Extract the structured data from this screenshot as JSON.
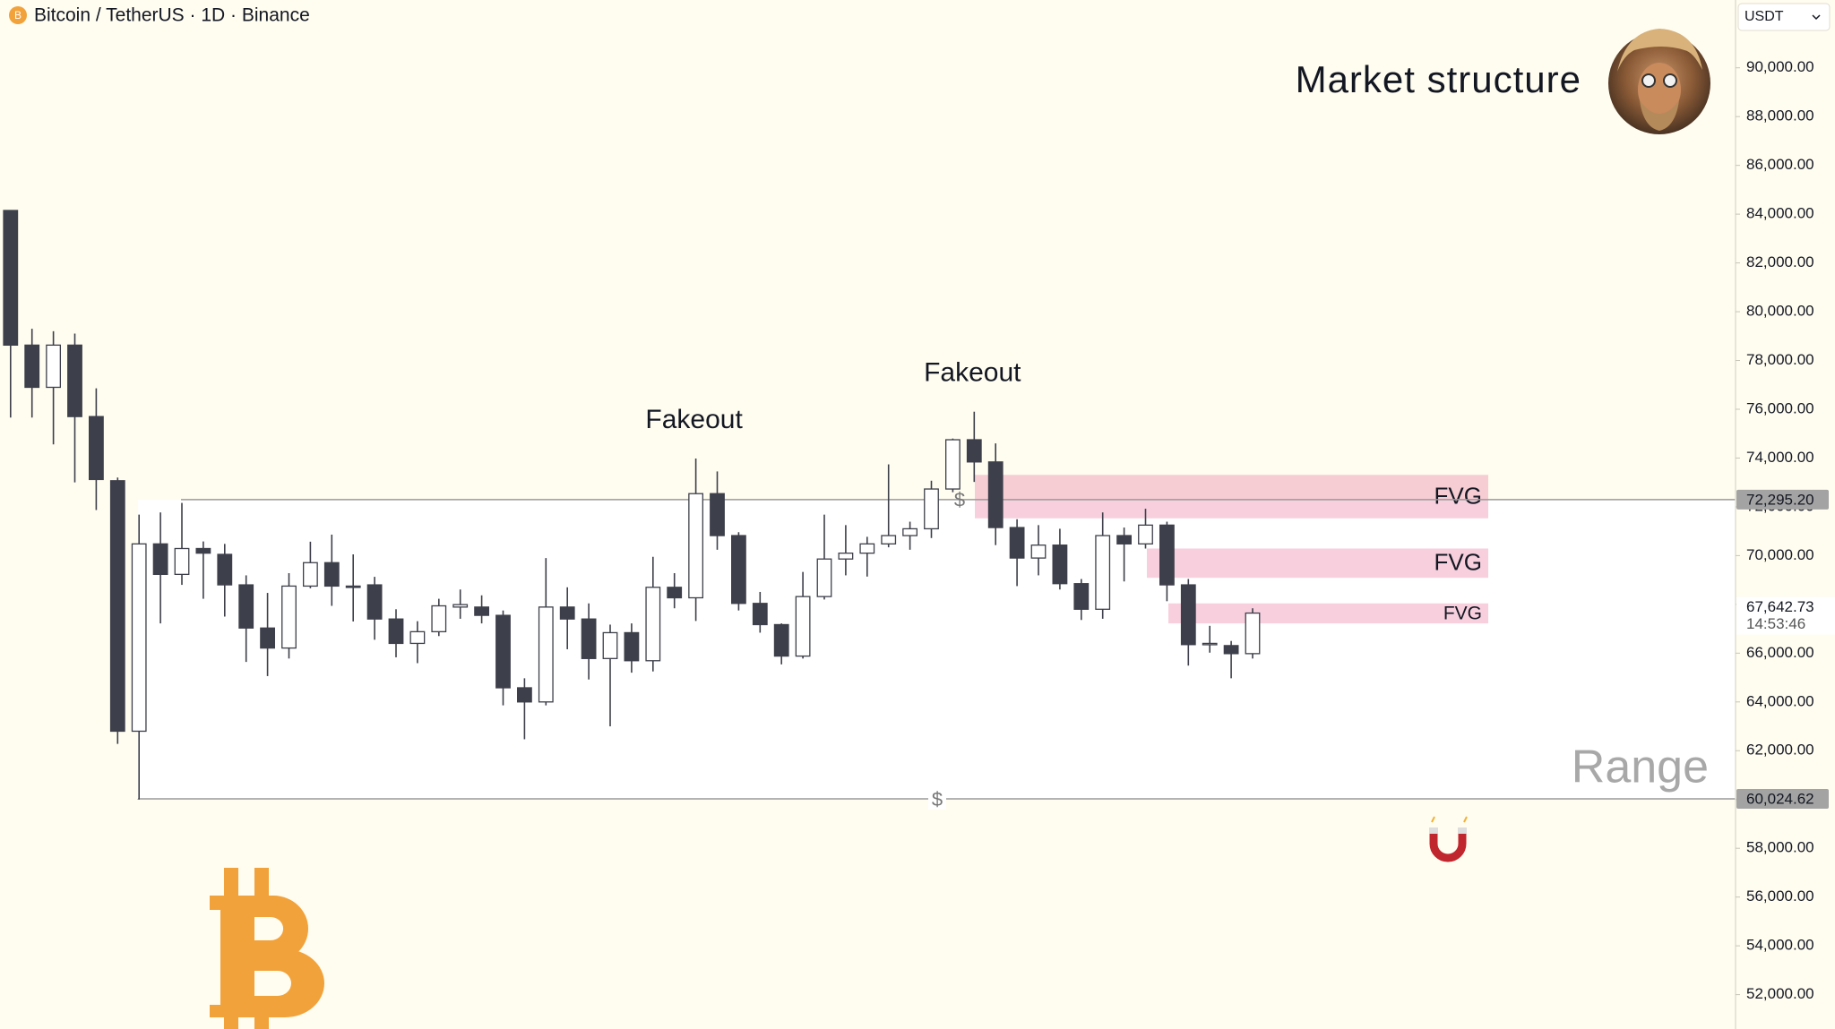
{
  "chart_data": {
    "type": "candlestick",
    "title": "Bitcoin / TetherUS · 1D · Binance",
    "currency": "USDT",
    "subtitle": "Market structure",
    "fakeouts": [
      "Fakeout",
      "Fakeout"
    ],
    "range_label": "Range",
    "open": [
      84150,
      78630,
      76900,
      78630,
      75700,
      73070,
      62800,
      70480,
      69230,
      70290,
      70050,
      68800,
      67030,
      66210,
      68750,
      69710,
      68750,
      68800,
      67400,
      66400,
      66880,
      67890,
      67890,
      67550,
      64580,
      64000,
      67890,
      67400,
      65780,
      66840,
      65690,
      68700,
      68270,
      72540,
      70820,
      68040,
      67170,
      65880,
      68320,
      69860,
      70100,
      70480,
      70820,
      71100,
      72730,
      74750,
      73840,
      71150,
      69900,
      70430,
      68850,
      67800,
      70820,
      70480,
      71250,
      68800,
      66350,
      66310,
      65980
    ],
    "high": [
      84150,
      79300,
      79200,
      79100,
      76860,
      73200,
      71680,
      71770,
      72160,
      70580,
      70480,
      69190,
      68470,
      69280,
      70570,
      70860,
      70050,
      69130,
      67800,
      67310,
      68230,
      68610,
      68370,
      67750,
      64970,
      69900,
      68700,
      68040,
      67170,
      67220,
      69950,
      69280,
      73980,
      73450,
      70960,
      68510,
      67220,
      69330,
      71680,
      71250,
      70770,
      73740,
      71390,
      73070,
      74800,
      75900,
      74600,
      71490,
      71250,
      71100,
      69040,
      71770,
      71150,
      71920,
      71390,
      69040,
      67120,
      66500,
      67840
    ],
    "low": [
      75660,
      75660,
      74560,
      73000,
      71870,
      62280,
      60000,
      67220,
      68800,
      68230,
      67500,
      65640,
      65060,
      65780,
      68660,
      67940,
      67300,
      66550,
      65830,
      65590,
      66700,
      67410,
      67220,
      63860,
      62470,
      63860,
      66160,
      64920,
      63000,
      65200,
      65250,
      67840,
      67320,
      70240,
      67750,
      66840,
      65540,
      65780,
      68200,
      69190,
      69140,
      70340,
      70240,
      70720,
      72600,
      73020,
      70430,
      68750,
      69190,
      68610,
      67360,
      67410,
      68940,
      70290,
      68130,
      65490,
      66020,
      64970,
      65780
    ],
    "close": [
      78630,
      76900,
      78630,
      75700,
      73120,
      62800,
      70480,
      69230,
      70290,
      70100,
      68800,
      67030,
      66210,
      68750,
      69710,
      68750,
      68700,
      67400,
      66400,
      66880,
      67940,
      67990,
      67550,
      64580,
      64000,
      67890,
      67400,
      65780,
      66840,
      65690,
      68700,
      68270,
      72540,
      70820,
      68040,
      67170,
      65880,
      68320,
      69860,
      70100,
      70480,
      70820,
      71100,
      72730,
      74750,
      73840,
      71150,
      69900,
      70430,
      68850,
      67800,
      70820,
      70480,
      71250,
      68800,
      66350,
      66400,
      65980,
      67642.73
    ],
    "up_color": "#ffffff",
    "down_color": "#3d3f4a",
    "ylim": [
      50590,
      92780
    ],
    "yticks": [
      {
        "value": 52000,
        "label": "52,000.00"
      },
      {
        "value": 54000,
        "label": "54,000.00"
      },
      {
        "value": 56000,
        "label": "56,000.00"
      },
      {
        "value": 58000,
        "label": "58,000.00"
      },
      {
        "value": 60000,
        "label": "60,000.00"
      },
      {
        "value": 62000,
        "label": "62,000.00"
      },
      {
        "value": 64000,
        "label": "64,000.00"
      },
      {
        "value": 66000,
        "label": "66,000.00"
      },
      {
        "value": 68000,
        "label": "68,000.00"
      },
      {
        "value": 70000,
        "label": "70,000.00"
      },
      {
        "value": 72000,
        "label": "72,000.00"
      },
      {
        "value": 74000,
        "label": "74,000.00"
      },
      {
        "value": 76000,
        "label": "76,000.00"
      },
      {
        "value": 78000,
        "label": "78,000.00"
      },
      {
        "value": 80000,
        "label": "80,000.00"
      },
      {
        "value": 82000,
        "label": "82,000.00"
      },
      {
        "value": 84000,
        "label": "84,000.00"
      },
      {
        "value": 86000,
        "label": "86,000.00"
      },
      {
        "value": 88000,
        "label": "88,000.00"
      },
      {
        "value": 90000,
        "label": "90,000.00"
      }
    ],
    "levels": [
      {
        "value": 72295.2,
        "label": "72,295.20",
        "marker": "$"
      },
      {
        "value": 60024.62,
        "label": "60,024.62",
        "marker": "$"
      }
    ],
    "zones": [
      {
        "label": "FVG",
        "high": 73310,
        "low": 71530
      },
      {
        "label": "FVG",
        "high": 70290,
        "low": 69090
      },
      {
        "label": "FVG",
        "high": 68040,
        "low": 67220
      }
    ],
    "zone_color": "rgba(236,140,175,0.42)",
    "last_price": {
      "value": 67642.73,
      "label": "67,642.73",
      "countdown": "14:53:46"
    }
  }
}
